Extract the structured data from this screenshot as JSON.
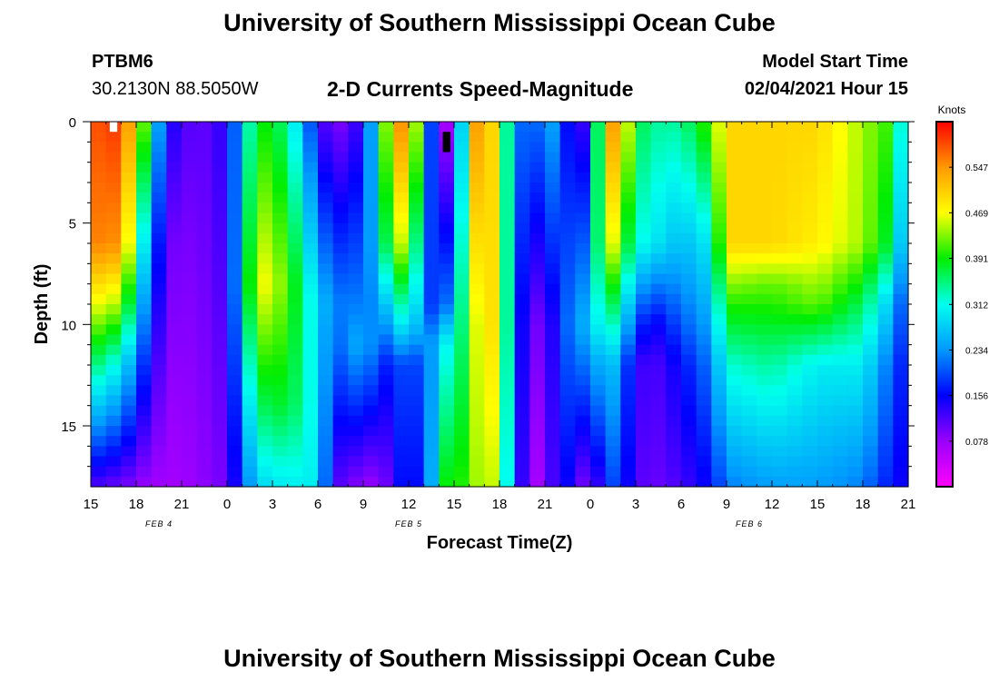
{
  "chart_data": {
    "type": "heatmap",
    "title": "University of Southern Mississippi Ocean Cube",
    "footer_title": "University of Southern Mississippi Ocean Cube",
    "subtitle": "2-D Currents Speed-Magnitude",
    "station": "PTBM6",
    "location": "30.2130N 88.5050W",
    "model_start_label": "Model Start Time",
    "model_start_value": "02/04/2021 Hour 15",
    "xlabel": "Forecast Time(Z)",
    "ylabel": "Depth (ft)",
    "x_tick_labels": [
      "15",
      "18",
      "21",
      "0",
      "3",
      "6",
      "9",
      "12",
      "15",
      "18",
      "21",
      "0",
      "3",
      "6",
      "9",
      "12",
      "15",
      "18",
      "21"
    ],
    "x_range_hours": [
      0,
      54
    ],
    "date_labels": [
      {
        "text": "FEB 4",
        "hour": 4.5
      },
      {
        "text": "FEB 5",
        "hour": 21
      },
      {
        "text": "FEB 6",
        "hour": 43.5
      }
    ],
    "y_ticks": [
      0,
      5,
      10,
      15
    ],
    "ylim": [
      0,
      18
    ],
    "colorbar": {
      "title": "Knots",
      "ticks": [
        "0.547",
        "0.469",
        "0.391",
        "0.312",
        "0.234",
        "0.156",
        "0.078"
      ],
      "tick_values": [
        0.547,
        0.469,
        0.391,
        0.312,
        0.234,
        0.156,
        0.078
      ],
      "range": [
        0.0,
        0.625
      ]
    },
    "profiles_description": "speed (knots) vs depth (ft) at forecast hours",
    "profiles": [
      {
        "hour": 0,
        "depth": [
          0,
          6,
          9,
          12,
          18
        ],
        "speed": [
          0.58,
          0.56,
          0.47,
          0.36,
          0.12
        ]
      },
      {
        "hour": 2,
        "depth": [
          0,
          6,
          9,
          12,
          18
        ],
        "speed": [
          0.6,
          0.55,
          0.44,
          0.3,
          0.1
        ]
      },
      {
        "hour": 3.5,
        "depth": [
          0,
          6,
          9,
          12,
          18
        ],
        "speed": [
          0.42,
          0.3,
          0.24,
          0.18,
          0.08
        ]
      },
      {
        "hour": 5,
        "depth": [
          0,
          6,
          18
        ],
        "speed": [
          0.15,
          0.1,
          0.07
        ]
      },
      {
        "hour": 7,
        "depth": [
          0,
          18
        ],
        "speed": [
          0.1,
          0.08
        ]
      },
      {
        "hour": 9,
        "depth": [
          0,
          18
        ],
        "speed": [
          0.14,
          0.1
        ]
      },
      {
        "hour": 11,
        "depth": [
          0,
          8,
          18
        ],
        "speed": [
          0.4,
          0.48,
          0.28
        ]
      },
      {
        "hour": 13,
        "depth": [
          0,
          8,
          14,
          18
        ],
        "speed": [
          0.35,
          0.42,
          0.38,
          0.3
        ]
      },
      {
        "hour": 15,
        "depth": [
          0,
          9,
          18
        ],
        "speed": [
          0.15,
          0.28,
          0.3
        ]
      },
      {
        "hour": 16,
        "depth": [
          0,
          9,
          18
        ],
        "speed": [
          0.08,
          0.22,
          0.12
        ]
      },
      {
        "hour": 18,
        "depth": [
          0,
          9,
          11,
          18
        ],
        "speed": [
          0.14,
          0.22,
          0.26,
          0.08
        ]
      },
      {
        "hour": 19,
        "depth": [
          0,
          6,
          11,
          18
        ],
        "speed": [
          0.34,
          0.28,
          0.2,
          0.08
        ]
      },
      {
        "hour": 20,
        "depth": [
          0,
          6,
          10,
          12,
          18
        ],
        "speed": [
          0.52,
          0.45,
          0.26,
          0.16,
          0.12
        ]
      },
      {
        "hour": 21,
        "depth": [
          0,
          6,
          10,
          12,
          18
        ],
        "speed": [
          0.58,
          0.45,
          0.33,
          0.22,
          0.2
        ]
      },
      {
        "hour": 22,
        "depth": [
          0,
          9,
          12,
          18
        ],
        "speed": [
          0.3,
          0.22,
          0.16,
          0.12
        ]
      },
      {
        "hour": 23,
        "depth": [
          0,
          9,
          11,
          18
        ],
        "speed": [
          0.08,
          0.15,
          0.3,
          0.38
        ]
      },
      {
        "hour": 24,
        "depth": [
          0,
          10,
          18
        ],
        "speed": [
          0.06,
          0.3,
          0.4
        ]
      },
      {
        "hour": 25,
        "depth": [
          0,
          10,
          18
        ],
        "speed": [
          0.5,
          0.4,
          0.4
        ]
      },
      {
        "hour": 26,
        "depth": [
          0,
          10,
          18
        ],
        "speed": [
          0.58,
          0.52,
          0.48
        ]
      },
      {
        "hour": 27,
        "depth": [
          0,
          10,
          18
        ],
        "speed": [
          0.42,
          0.46,
          0.42
        ]
      },
      {
        "hour": 28,
        "depth": [
          0,
          10,
          18
        ],
        "speed": [
          0.26,
          0.22,
          0.2
        ]
      },
      {
        "hour": 29,
        "depth": [
          0,
          10,
          18
        ],
        "speed": [
          0.16,
          0.08,
          0.06
        ]
      },
      {
        "hour": 30,
        "depth": [
          0,
          10,
          18
        ],
        "speed": [
          0.26,
          0.12,
          0.08
        ]
      },
      {
        "hour": 31,
        "depth": [
          0,
          10,
          18
        ],
        "speed": [
          0.22,
          0.16,
          0.16
        ]
      },
      {
        "hour": 32,
        "depth": [
          0,
          10,
          18
        ],
        "speed": [
          0.1,
          0.26,
          0.14
        ]
      },
      {
        "hour": 33,
        "depth": [
          0,
          10,
          18
        ],
        "speed": [
          0.16,
          0.24,
          0.06
        ]
      },
      {
        "hour": 34,
        "depth": [
          0,
          6,
          12,
          18
        ],
        "speed": [
          0.56,
          0.5,
          0.3,
          0.2
        ]
      },
      {
        "hour": 35,
        "depth": [
          0,
          6,
          12,
          18
        ],
        "speed": [
          0.52,
          0.42,
          0.22,
          0.18
        ]
      },
      {
        "hour": 36,
        "depth": [
          0,
          6,
          10,
          12,
          18
        ],
        "speed": [
          0.38,
          0.32,
          0.2,
          0.14,
          0.12
        ]
      },
      {
        "hour": 37,
        "depth": [
          0,
          6,
          10,
          12,
          18
        ],
        "speed": [
          0.34,
          0.3,
          0.14,
          0.11,
          0.1
        ]
      },
      {
        "hour": 39,
        "depth": [
          0,
          6,
          10,
          12,
          18
        ],
        "speed": [
          0.34,
          0.26,
          0.2,
          0.16,
          0.12
        ]
      },
      {
        "hour": 41,
        "depth": [
          0,
          6,
          9,
          12,
          18
        ],
        "speed": [
          0.42,
          0.3,
          0.26,
          0.22,
          0.16
        ]
      },
      {
        "hour": 42,
        "depth": [
          0,
          6,
          9,
          12,
          18
        ],
        "speed": [
          0.5,
          0.5,
          0.4,
          0.32,
          0.22
        ]
      },
      {
        "hour": 45,
        "depth": [
          0,
          6,
          8,
          12,
          18
        ],
        "speed": [
          0.5,
          0.5,
          0.42,
          0.34,
          0.24
        ]
      },
      {
        "hour": 48,
        "depth": [
          0,
          6,
          9,
          12,
          18
        ],
        "speed": [
          0.5,
          0.48,
          0.42,
          0.3,
          0.24
        ]
      },
      {
        "hour": 51,
        "depth": [
          0,
          6,
          9,
          12,
          18
        ],
        "speed": [
          0.44,
          0.44,
          0.36,
          0.3,
          0.22
        ]
      },
      {
        "hour": 53,
        "depth": [
          0,
          6,
          9,
          12,
          18
        ],
        "speed": [
          0.4,
          0.36,
          0.26,
          0.2,
          0.16
        ]
      },
      {
        "hour": 54,
        "depth": [
          0,
          9,
          18
        ],
        "speed": [
          0.24,
          0.16,
          0.14
        ]
      }
    ],
    "missing_cells": [
      {
        "hour": 1.5,
        "depth_range": [
          0,
          0.5
        ],
        "color": "#ffffff"
      },
      {
        "hour": 23.5,
        "depth_range": [
          0.5,
          1.5
        ],
        "color": "#000000"
      }
    ]
  }
}
